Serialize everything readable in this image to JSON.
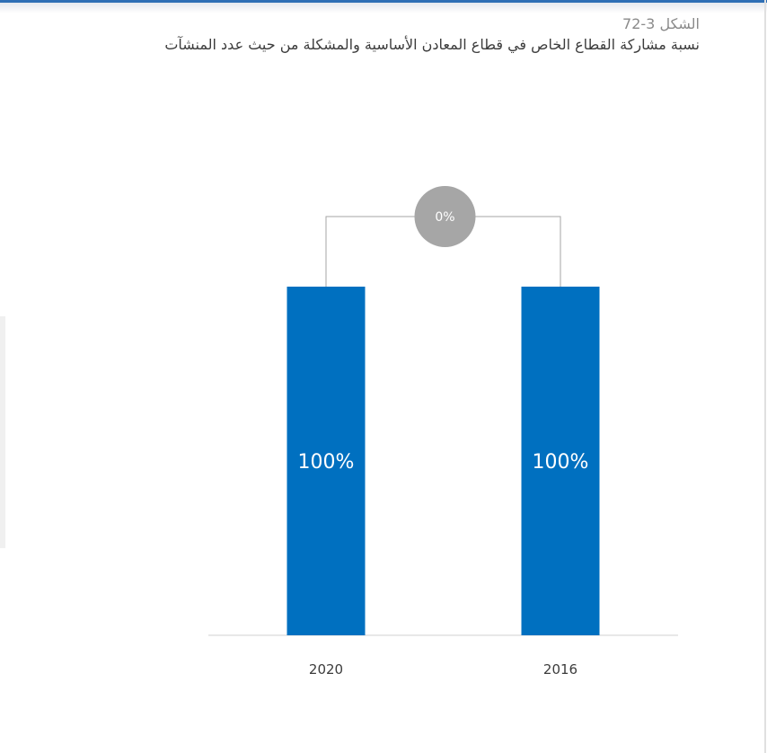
{
  "figure": {
    "number": "الشكل 3-72",
    "title": "نسبة مشاركة القطاع الخاص في قطاع المعادن الأساسية والمشكلة من حيث عدد المنشآت"
  },
  "chart_data": {
    "type": "bar",
    "categories": [
      "2020",
      "2016"
    ],
    "values": [
      100,
      100
    ],
    "value_labels": [
      "100%",
      "100%"
    ],
    "change_label": "0%",
    "ylim": [
      0,
      100
    ],
    "grid": false,
    "xlabel": "",
    "ylabel": "",
    "colors": {
      "bar": "#0070c0",
      "bar_label": "#ffffff",
      "change_circle": "#a6a6a6",
      "change_text": "#ffffff",
      "connector": "#a6a6a6",
      "axis": "#d0d0d0",
      "tick_text": "#3c3c3c"
    }
  }
}
